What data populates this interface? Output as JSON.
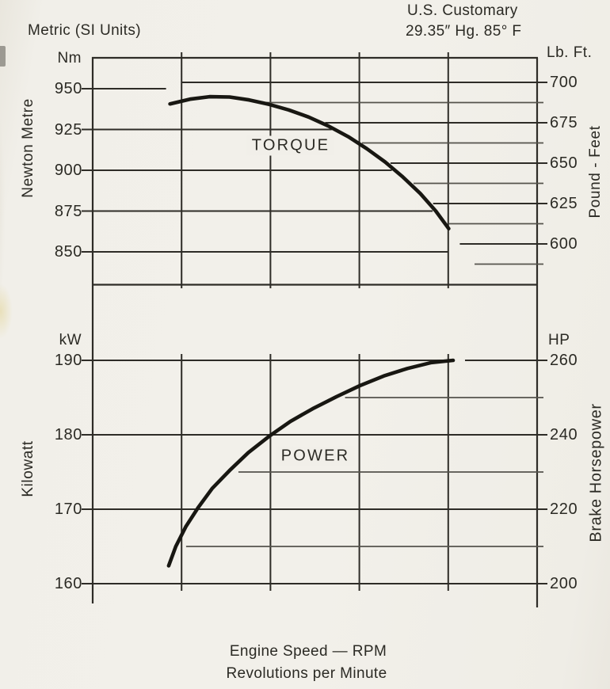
{
  "page": {
    "title_metric": "Metric (SI Units)",
    "title_us": "U.S. Customary",
    "us_conditions": "29.35″ Hg. 85° F",
    "background": "#f1efe9",
    "ink": "#2e2c27"
  },
  "footer": {
    "xlabel_line1": "Engine Speed — RPM",
    "xlabel_line2": "Revolutions per Minute"
  },
  "chart_data": [
    {
      "type": "line",
      "name": "TORQUE",
      "xlabel": "Engine Speed — RPM",
      "x_tick_labels_printed": false,
      "grid": true,
      "y_axis_left": {
        "unit": "Nm",
        "title": "Newton Metre",
        "ticks": [
          950,
          925,
          900,
          875,
          850
        ]
      },
      "y_axis_right": {
        "unit": "Lb. Ft.",
        "title": "Pound - Feet",
        "ticks": [
          700,
          675,
          650,
          625,
          600
        ],
        "minor_ticks": [
          687.5,
          662.5,
          637.5,
          612.5,
          587.5
        ]
      },
      "points": [
        {
          "x_frac": 0.174,
          "value": 940.7
        },
        {
          "x_frac": 0.219,
          "value": 943.6
        },
        {
          "x_frac": 0.263,
          "value": 945.1
        },
        {
          "x_frac": 0.308,
          "value": 944.9
        },
        {
          "x_frac": 0.352,
          "value": 943.1
        },
        {
          "x_frac": 0.397,
          "value": 940.4
        },
        {
          "x_frac": 0.441,
          "value": 937.0
        },
        {
          "x_frac": 0.486,
          "value": 932.6
        },
        {
          "x_frac": 0.53,
          "value": 927.2
        },
        {
          "x_frac": 0.575,
          "value": 920.6
        },
        {
          "x_frac": 0.617,
          "value": 913.2
        },
        {
          "x_frac": 0.658,
          "value": 905.1
        },
        {
          "x_frac": 0.697,
          "value": 896.1
        },
        {
          "x_frac": 0.737,
          "value": 885.8
        },
        {
          "x_frac": 0.772,
          "value": 875.0
        },
        {
          "x_frac": 0.801,
          "value": 864.2
        }
      ]
    },
    {
      "type": "line",
      "name": "POWER",
      "xlabel": "Engine Speed — RPM",
      "x_tick_labels_printed": false,
      "grid": true,
      "y_axis_left": {
        "unit": "kW",
        "title": "Kilowatt",
        "ticks": [
          190,
          180,
          170,
          160
        ]
      },
      "y_axis_right": {
        "unit": "HP",
        "title": "Brake Horsepower",
        "ticks": [
          260,
          240,
          220,
          200
        ],
        "minor_ticks": [
          250,
          230,
          210
        ]
      },
      "points": [
        {
          "x_frac": 0.171,
          "value": 162.4
        },
        {
          "x_frac": 0.187,
          "value": 165.0
        },
        {
          "x_frac": 0.21,
          "value": 167.7
        },
        {
          "x_frac": 0.237,
          "value": 170.2
        },
        {
          "x_frac": 0.269,
          "value": 172.8
        },
        {
          "x_frac": 0.308,
          "value": 175.2
        },
        {
          "x_frac": 0.35,
          "value": 177.6
        },
        {
          "x_frac": 0.397,
          "value": 179.8
        },
        {
          "x_frac": 0.445,
          "value": 181.8
        },
        {
          "x_frac": 0.495,
          "value": 183.5
        },
        {
          "x_frac": 0.548,
          "value": 185.1
        },
        {
          "x_frac": 0.601,
          "value": 186.6
        },
        {
          "x_frac": 0.655,
          "value": 187.9
        },
        {
          "x_frac": 0.708,
          "value": 188.9
        },
        {
          "x_frac": 0.762,
          "value": 189.7
        },
        {
          "x_frac": 0.811,
          "value": 190.0
        }
      ]
    }
  ]
}
